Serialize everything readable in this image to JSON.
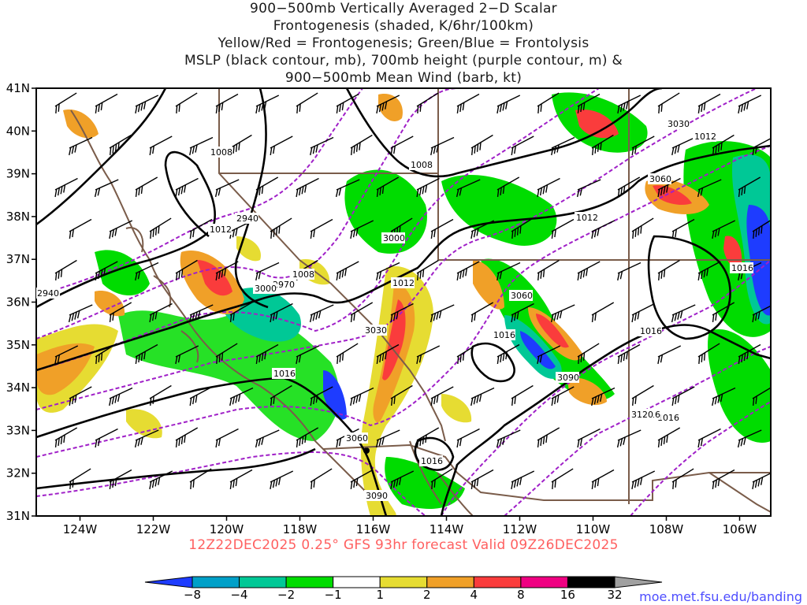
{
  "title_lines": [
    "900−500mb Vertically Averaged 2−D Scalar",
    "Frontogenesis (shaded, K/6hr/100km)",
    "Yellow/Red = Frontogenesis;  Green/Blue = Frontolysis",
    "MSLP (black contour, mb), 700mb height (purple contour, m) &",
    "900−500mb Mean Wind (barb, kt)"
  ],
  "subtitle": "12Z22DEC2025 0.25° GFS 93hr forecast Valid 09Z26DEC2025",
  "credit": "moe.met.fsu.edu/banding",
  "axes": {
    "lat_labels": [
      "41N",
      "40N",
      "39N",
      "38N",
      "37N",
      "36N",
      "35N",
      "34N",
      "33N",
      "32N",
      "31N"
    ],
    "lon_labels": [
      "124W",
      "122W",
      "120W",
      "118W",
      "116W",
      "114W",
      "112W",
      "110W",
      "108W",
      "106W"
    ]
  },
  "colorbar": {
    "labels": [
      "−8",
      "−4",
      "−2",
      "−1",
      "1",
      "2",
      "4",
      "8",
      "16",
      "32"
    ],
    "colors": [
      "#1e3cff",
      "#00a0c8",
      "#00c896",
      "#00dc00",
      "#ffffff",
      "#e6dc32",
      "#f0a028",
      "#fa3c3c",
      "#f00082",
      "#000000",
      "#a0a0a0"
    ]
  },
  "mslp_labels": [
    "1008",
    "1008",
    "1012",
    "1008",
    "1012",
    "1012",
    "1012",
    "1016",
    "1016",
    "1016",
    "1016",
    "1016",
    "1016",
    "1016"
  ],
  "height_labels": [
    "2940",
    "2940",
    "2970",
    "3000",
    "3000",
    "3030",
    "3060",
    "3060",
    "3090",
    "3060",
    "3090",
    "3030",
    "3120"
  ]
}
